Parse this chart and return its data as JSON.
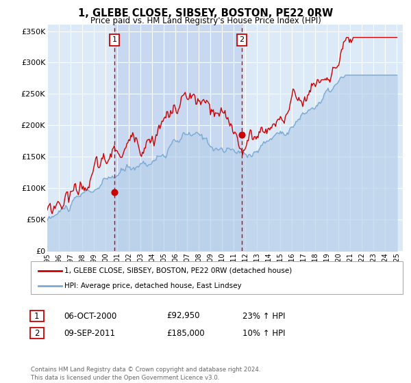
{
  "title": "1, GLEBE CLOSE, SIBSEY, BOSTON, PE22 0RW",
  "subtitle": "Price paid vs. HM Land Registry's House Price Index (HPI)",
  "ylim": [
    0,
    360000
  ],
  "yticks": [
    0,
    50000,
    100000,
    150000,
    200000,
    250000,
    300000,
    350000
  ],
  "ytick_labels": [
    "£0",
    "£50K",
    "£100K",
    "£150K",
    "£200K",
    "£250K",
    "£300K",
    "£350K"
  ],
  "background_color": "#ffffff",
  "plot_bg_color": "#dce9f7",
  "shade_color": "#c8d8f0",
  "grid_color": "#ffffff",
  "hpi_color": "#7aaad4",
  "hpi_fill_color": "#b8d0ea",
  "price_color": "#cc0000",
  "vline_color": "#cc0000",
  "marker1_date": 2000.76,
  "marker1_price": 92950,
  "marker2_date": 2011.69,
  "marker2_price": 185000,
  "legend_line1": "1, GLEBE CLOSE, SIBSEY, BOSTON, PE22 0RW (detached house)",
  "legend_line2": "HPI: Average price, detached house, East Lindsey",
  "table_row1": [
    "1",
    "06-OCT-2000",
    "£92,950",
    "23% ↑ HPI"
  ],
  "table_row2": [
    "2",
    "09-SEP-2011",
    "£185,000",
    "10% ↑ HPI"
  ],
  "footer": "Contains HM Land Registry data © Crown copyright and database right 2024.\nThis data is licensed under the Open Government Licence v3.0.",
  "xmin": 1995,
  "xmax": 2025.5
}
